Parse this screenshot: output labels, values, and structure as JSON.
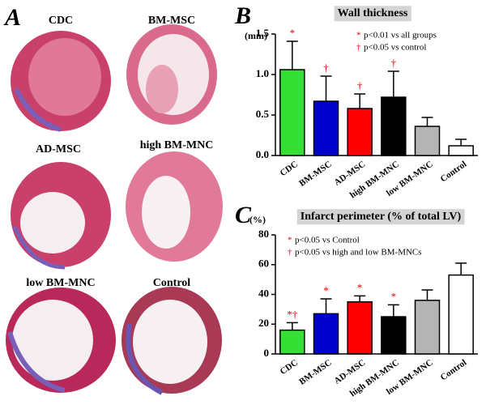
{
  "panel_a": {
    "label": "A",
    "images": [
      {
        "label": "CDC"
      },
      {
        "label": "BM-MSC"
      },
      {
        "label": "AD-MSC"
      },
      {
        "label": "high BM-MNC"
      },
      {
        "label": "low BM-MNC"
      },
      {
        "label": "Control"
      }
    ]
  },
  "chart_data": [
    {
      "type": "bar",
      "panel_label": "B",
      "title": "Wall thickness",
      "y_unit": "(mm)",
      "categories": [
        "CDC",
        "BM-MSC",
        "AD-MSC",
        "high BM-MNC",
        "low BM-MNC",
        "Control"
      ],
      "values": [
        1.06,
        0.67,
        0.58,
        0.72,
        0.36,
        0.12
      ],
      "errors": [
        0.35,
        0.31,
        0.18,
        0.32,
        0.11,
        0.08
      ],
      "colors": [
        "#33e033",
        "#0000cc",
        "#ff0000",
        "#000000",
        "#b4b4b4",
        "#ffffff"
      ],
      "markers": [
        "*",
        "†",
        "†",
        "†",
        null,
        null
      ],
      "notes": [
        {
          "symbol": "*",
          "text": "p<0.01 vs all groups"
        },
        {
          "symbol": "†",
          "text": "p<0.05 vs control"
        }
      ],
      "ylim": [
        0,
        1.5
      ],
      "yticks": [
        {
          "value": 0,
          "label": "0.0"
        },
        {
          "value": 0.5,
          "label": "0.5"
        },
        {
          "value": 1,
          "label": "1.0"
        },
        {
          "value": 1.5,
          "label": "1.5"
        }
      ]
    },
    {
      "type": "bar",
      "panel_label": "C",
      "title": "Infarct perimeter  (% of total LV)",
      "y_unit": "(%)",
      "categories": [
        "CDC",
        "BM-MSC",
        "AD-MSC",
        "high BM-MNC",
        "low BM-MNC",
        "Control"
      ],
      "values": [
        16,
        27,
        35,
        25,
        36,
        53
      ],
      "errors": [
        5,
        10,
        4,
        8,
        7,
        8
      ],
      "colors": [
        "#33e033",
        "#0000cc",
        "#ff0000",
        "#000000",
        "#b4b4b4",
        "#ffffff"
      ],
      "markers": [
        "*†",
        "*",
        "*",
        "*",
        null,
        null
      ],
      "notes": [
        {
          "symbol": "*",
          "text": "p<0.05 vs Control"
        },
        {
          "symbol": "†",
          "text": "p<0.05 vs high and low BM-MNCs"
        }
      ],
      "ylim": [
        0,
        80
      ],
      "yticks": [
        0,
        20,
        40,
        60,
        80
      ]
    }
  ]
}
